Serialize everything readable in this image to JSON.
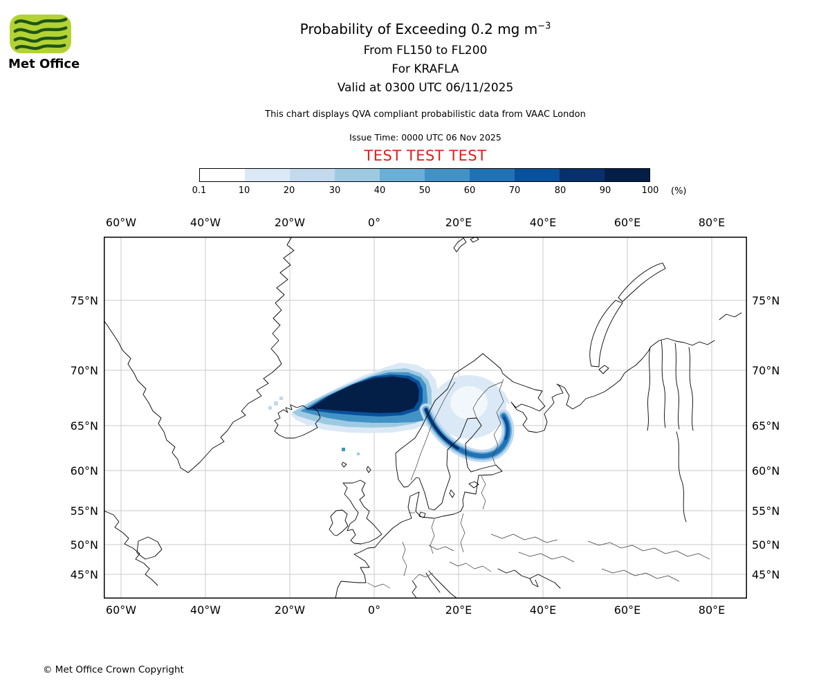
{
  "logo": {
    "text": "Met Office",
    "green": "#b3d234",
    "wave_color": "#1d5514"
  },
  "header": {
    "title_main": "Probability of Exceeding 0.2 mg m",
    "title_sup": "−3",
    "flight_levels": "From FL150 to FL200",
    "volcano": "For KRAFLA",
    "valid_time": "Valid at 0300 UTC 06/11/2025",
    "note": "This chart displays QVA compliant probabilistic data from VAAC London",
    "issue_time": "Issue Time: 0000 UTC 06 Nov 2025",
    "test_banner": "TEST TEST TEST",
    "test_banner_color": "#dc1f1a"
  },
  "colorbar": {
    "unit": "(%)",
    "ticks": [
      "0.1",
      "10",
      "20",
      "30",
      "40",
      "50",
      "60",
      "70",
      "80",
      "90",
      "100"
    ],
    "colors": [
      "#ffffff",
      "#dbe9f6",
      "#c3d9ee",
      "#9ecae1",
      "#6baed6",
      "#4292c6",
      "#2171b5",
      "#08519c",
      "#08306b",
      "#041f47"
    ]
  },
  "map": {
    "lon_labels": [
      "60°W",
      "40°W",
      "20°W",
      "0°",
      "20°E",
      "40°E",
      "60°E",
      "80°E"
    ],
    "lat_labels": [
      "75°N",
      "70°N",
      "65°N",
      "60°N",
      "55°N",
      "50°N",
      "45°N"
    ]
  },
  "chart_data": {
    "type": "heatmap",
    "title": "Probability of Exceeding 0.2 mg m-3",
    "subtitle": "From FL150 to FL200 | For KRAFLA | Valid at 0300 UTC 06/11/2025",
    "variable": "Probability that volcanic ash concentration exceeds 0.2 mg/m3",
    "unit": "%",
    "issue_time": "0000 UTC 06 Nov 2025",
    "source": "VAAC London (QVA compliant probabilistic data)",
    "levels_percent": [
      0.1,
      10,
      20,
      30,
      40,
      50,
      60,
      70,
      80,
      90,
      100
    ],
    "palette": [
      "#ffffff",
      "#dbe9f6",
      "#c3d9ee",
      "#9ecae1",
      "#6baed6",
      "#4292c6",
      "#2171b5",
      "#08519c",
      "#08306b",
      "#041f47"
    ],
    "legend_position": "top",
    "projection": "mercator-like, lat spacing shrinks southward",
    "map_extent": {
      "lon_min_deg": -64,
      "lon_max_deg": 88,
      "lat_min_deg": 41,
      "lat_max_deg": 79
    },
    "grid": true,
    "lon_gridlines_deg": [
      -60,
      -40,
      -20,
      0,
      20,
      40,
      60,
      80
    ],
    "lat_gridlines_deg": [
      45,
      50,
      55,
      60,
      65,
      70,
      75
    ],
    "features": [
      {
        "name": "main-plume",
        "probability_percent": "70-100",
        "description": "Dark triangular high-probability plume spreading ENE from Krafla/Iceland (~20W, 65N) across the Norwegian Sea to ~12E between 64N and 70N"
      },
      {
        "name": "southern-arc",
        "probability_percent": "20-70",
        "description": "Curved band arcing SE from the plume's eastern edge through central Scandinavia (~62-64N) then hooking NE across Finland to ~30E, 64N"
      },
      {
        "name": "enclosed-low-patch",
        "probability_percent": "0.1-20",
        "description": "Pale low-probability area over northern Finland / Gulf of Bothnia enclosed by the arc"
      },
      {
        "name": "outlier-pixels",
        "probability_percent": "0.1-20",
        "description": "Scattered low-probability cells just north-west of Iceland and south of the main plume"
      }
    ]
  },
  "footer": {
    "copyright": "© Met Office Crown Copyright"
  }
}
